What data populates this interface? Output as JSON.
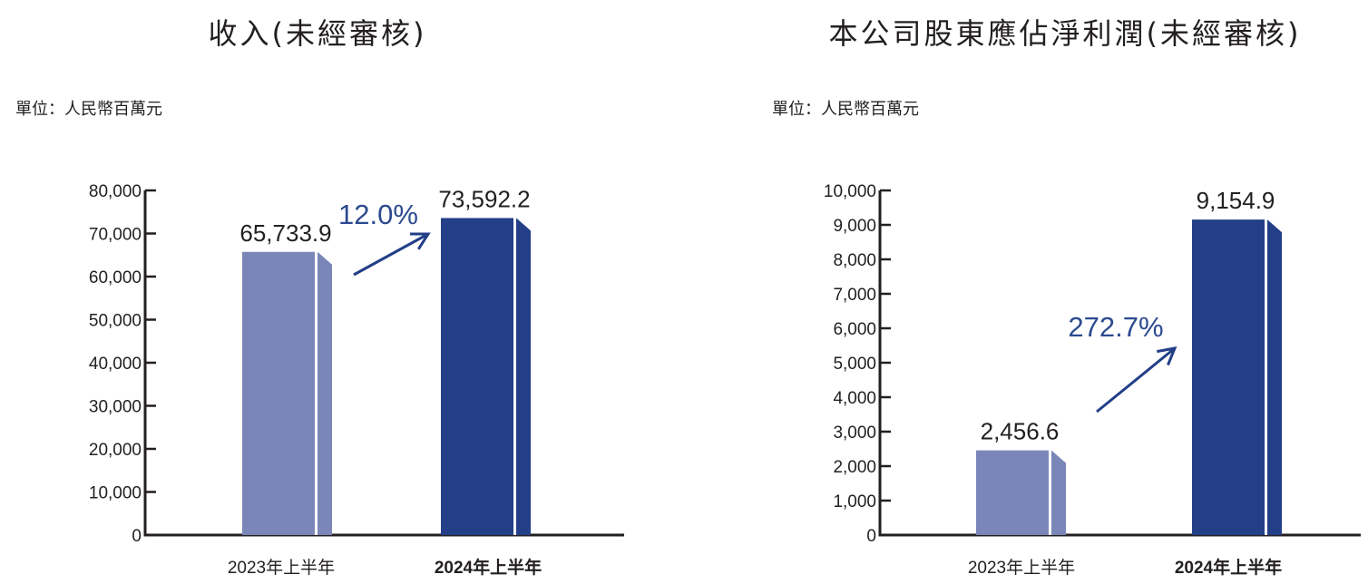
{
  "colors": {
    "bar_2023": "#7b86b8",
    "bar_2024": "#223f87",
    "arrow": "#223f87",
    "growth_text": "#2c4a8f",
    "axis": "#231f20"
  },
  "chart_data": [
    {
      "type": "bar",
      "title": "收入(未經審核)",
      "unit_label": "單位：人民幣百萬元",
      "categories": [
        "2023年上半年",
        "2024年上半年"
      ],
      "values": [
        65733.9,
        73592.2
      ],
      "value_labels": [
        "65,733.9",
        "73,592.2"
      ],
      "ylim": [
        0,
        80000
      ],
      "yticks": [
        0,
        10000,
        20000,
        30000,
        40000,
        50000,
        60000,
        70000,
        80000
      ],
      "ytick_labels": [
        "0",
        "10,000",
        "20,000",
        "30,000",
        "40,000",
        "50,000",
        "60,000",
        "70,000",
        "80,000"
      ],
      "growth_label": "12.0%",
      "xlabel": "",
      "ylabel": ""
    },
    {
      "type": "bar",
      "title": "本公司股東應佔淨利潤(未經審核)",
      "unit_label": "單位：人民幣百萬元",
      "categories": [
        "2023年上半年",
        "2024年上半年"
      ],
      "values": [
        2456.6,
        9154.9
      ],
      "value_labels": [
        "2,456.6",
        "9,154.9"
      ],
      "ylim": [
        0,
        10000
      ],
      "yticks": [
        0,
        1000,
        2000,
        3000,
        4000,
        5000,
        6000,
        7000,
        8000,
        9000,
        10000
      ],
      "ytick_labels": [
        "0",
        "1,000",
        "2,000",
        "3,000",
        "4,000",
        "5,000",
        "6,000",
        "7,000",
        "8,000",
        "9,000",
        "10,000"
      ],
      "growth_label": "272.7%",
      "xlabel": "",
      "ylabel": ""
    }
  ]
}
